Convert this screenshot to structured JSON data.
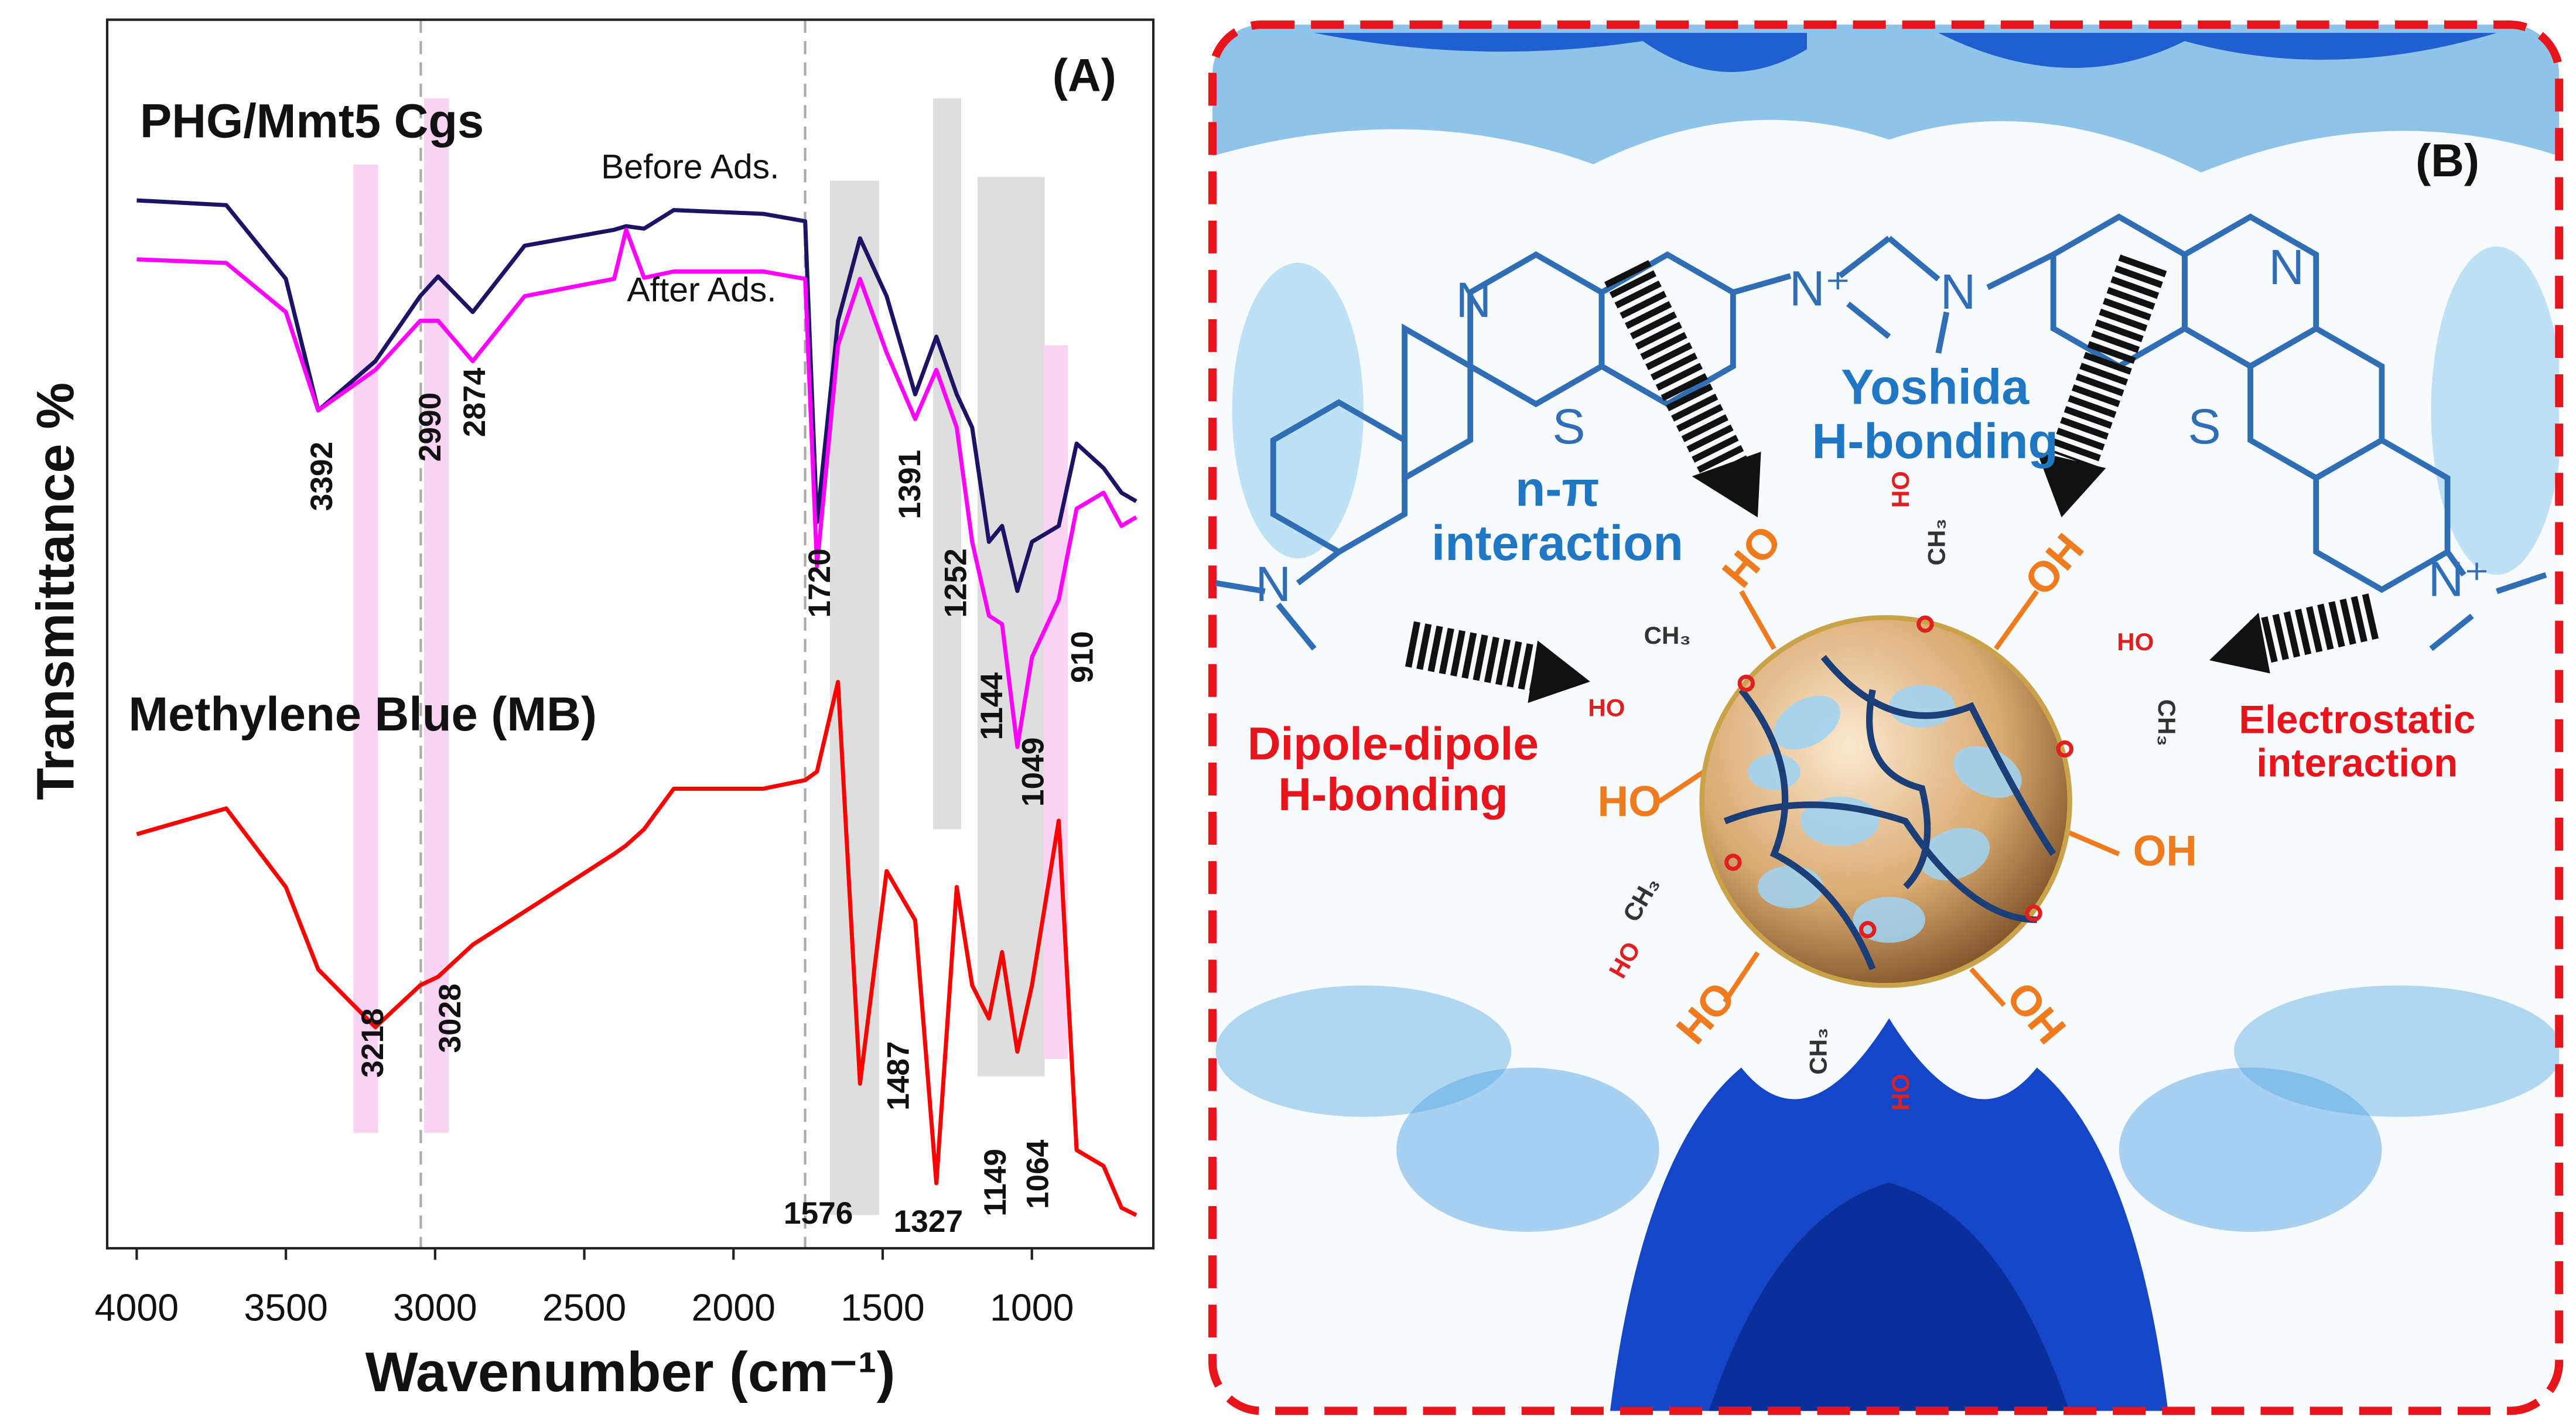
{
  "chart_data": {
    "type": "line",
    "panel_label": "(A)",
    "title": "PHG/Mmt5 Cgs",
    "xlabel": "Wavenumber (cm⁻¹)",
    "ylabel": "Transmittance %",
    "xlim": [
      4099,
      593
    ],
    "xticks": [
      4000,
      3500,
      3000,
      2500,
      2000,
      1500,
      1000
    ],
    "ylim": [
      0,
      100
    ],
    "x": [
      4000,
      3700,
      3500,
      3392,
      3200,
      3050,
      2990,
      2874,
      2700,
      2400,
      2360,
      2300,
      2200,
      1900,
      1760,
      1720,
      1650,
      1576,
      1487,
      1391,
      1320,
      1252,
      1200,
      1144,
      1100,
      1049,
      1000,
      910,
      850,
      760,
      700,
      650
    ],
    "series": [
      {
        "name": "Before Ads.",
        "color": "#1b1464",
        "values": [
          85.3,
          84.9,
          78.9,
          68.2,
          72.2,
          77.5,
          79.1,
          76.2,
          81.6,
          82.9,
          83.2,
          83.0,
          84.5,
          84.2,
          83.6,
          59.1,
          75.5,
          82.2,
          77.5,
          69.5,
          74.2,
          69.5,
          66.8,
          57.5,
          58.8,
          53.5,
          57.5,
          58.8,
          65.5,
          63.5,
          61.5,
          60.8
        ]
      },
      {
        "name": "After Ads.",
        "color": "#ff00ff",
        "values": [
          80.5,
          80.2,
          76.2,
          68.2,
          71.5,
          75.5,
          75.5,
          72.2,
          77.5,
          78.9,
          82.9,
          79.0,
          79.5,
          79.5,
          78.9,
          55.5,
          73.5,
          78.9,
          72.9,
          67.5,
          71.5,
          66.8,
          57.5,
          51.5,
          50.8,
          40.8,
          48.1,
          52.8,
          60.2,
          61.5,
          58.8,
          59.5
        ]
      },
      {
        "name": "Methylene Blue (MB)",
        "color": "#ff0000",
        "values": [
          33.7,
          35.8,
          29.4,
          22.7,
          18.0,
          21.4,
          22.1,
          24.7,
          27.4,
          32.1,
          32.8,
          34.1,
          37.4,
          37.4,
          38.1,
          38.8,
          46.1,
          13.4,
          30.7,
          26.7,
          5.3,
          29.4,
          21.4,
          18.7,
          24.1,
          16.0,
          21.4,
          34.8,
          8.0,
          6.7,
          3.3,
          2.7
        ]
      }
    ],
    "peak_labels": [
      3392,
      2990,
      2874,
      1720,
      1391,
      1252,
      1144,
      1049,
      910,
      3218,
      3028,
      1576,
      1487,
      1327,
      1149,
      1064
    ],
    "highlight_bands": [
      {
        "x": [
          3274,
          3191
        ],
        "y": [
          9.4,
          88.2
        ],
        "color": "#f9d3f2"
      },
      {
        "x": [
          3037,
          2954
        ],
        "y": [
          9.4,
          93.6
        ],
        "color": "#f9d3f2"
      },
      {
        "x": [
          1677,
          1512
        ],
        "y": [
          2.7,
          86.9
        ],
        "color": "#dedede"
      },
      {
        "x": [
          1331,
          1237
        ],
        "y": [
          34.1,
          93.6
        ],
        "color": "#dedede"
      },
      {
        "x": [
          1182,
          957
        ],
        "y": [
          14.0,
          87.2
        ],
        "color": "#dedede"
      },
      {
        "x": [
          962,
          880
        ],
        "y": [
          15.4,
          73.5
        ],
        "color": "#f9d3f2"
      }
    ],
    "reference_lines": [
      3048,
      1760
    ]
  },
  "panel_b": {
    "label": "(B)",
    "interactions": [
      [
        "Yoshida",
        "H-bonding"
      ],
      [
        "n-π",
        "interaction"
      ],
      [
        "Dipole-dipole",
        "H-bonding"
      ],
      [
        "Electrostatic",
        "interaction"
      ]
    ],
    "groups": [
      "HO",
      "OH",
      "HO",
      "OH",
      "HO",
      "OH"
    ],
    "small_groups": [
      "CH₃",
      "HO",
      "CH₃",
      "HO",
      "CH₃",
      "HO",
      "CH₃",
      "HO",
      "CH₃",
      "HO"
    ],
    "atoms": [
      "N",
      "S",
      "N",
      "N⁺",
      "N",
      "N",
      "S",
      "N⁺"
    ]
  }
}
